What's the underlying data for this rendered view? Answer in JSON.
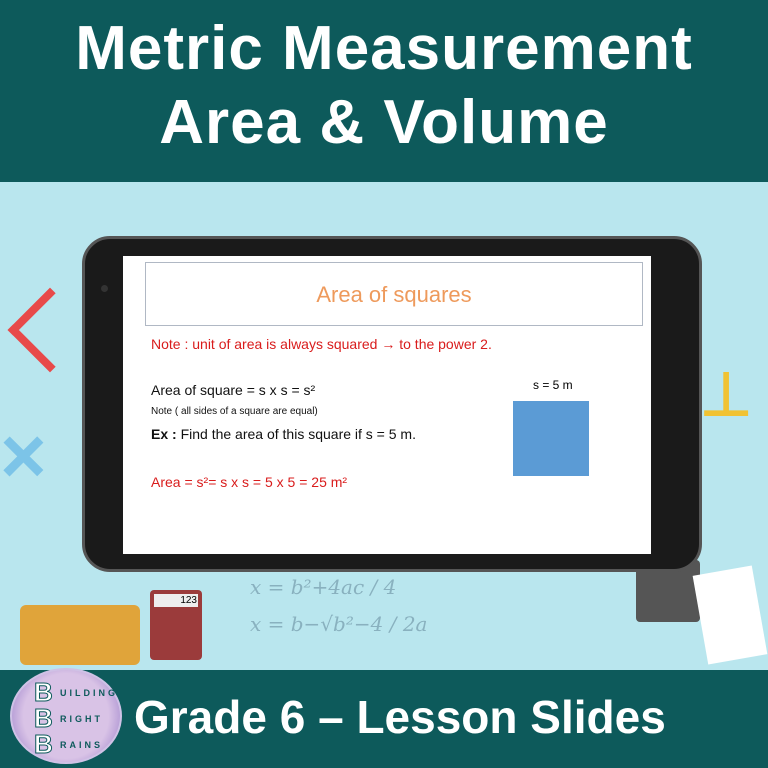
{
  "header": {
    "line1": "Metric Measurement",
    "line2": "Area & Volume"
  },
  "slide": {
    "title": "Area of squares",
    "note": "Note : unit of area is always squared → to the power 2.",
    "formula": "Area of square = s x s = s²",
    "subnote": "Note ( all sides of a square are equal)",
    "ex_label": "Ex :",
    "ex_text": " Find the area of this square if s = 5 m.",
    "answer": "Area = s²= s x s = 5 x 5 = 25 m²",
    "side_label": "s = 5 m",
    "square_color": "#5b9bd5"
  },
  "decor": {
    "calc_display": "123",
    "formula1": "x = b²+4ac / 4",
    "formula2": "x = b−√b²−4 / 2a"
  },
  "logo": {
    "letters": "BBB",
    "line1": "UILDING",
    "line2": "RIGHT",
    "line3": "RAINS"
  },
  "footer": {
    "title": "Grade 6 – Lesson Slides"
  },
  "colors": {
    "band": "#0d5a5b",
    "background": "#b9e6ee",
    "accent_red": "#d91c1c",
    "title_orange": "#ee9a5c"
  }
}
